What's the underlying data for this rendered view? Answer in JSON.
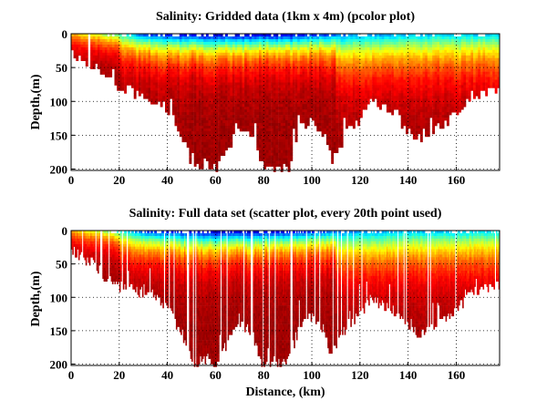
{
  "chart_data": [
    {
      "type": "heatmap",
      "title": "Salinity: Gridded data (1km x 4m) (pcolor plot)",
      "xlabel": "",
      "ylabel": "Depth,(m)",
      "xlim": [
        0,
        178
      ],
      "ylim": [
        0,
        202
      ],
      "y_reversed": true,
      "xticks": [
        "0",
        "20",
        "40",
        "60",
        "80",
        "100",
        "120",
        "140",
        "160"
      ],
      "yticks": [
        "0",
        "50",
        "100",
        "150",
        "200"
      ],
      "grid": true,
      "colormap": "jet",
      "cell_size_km": 1,
      "cell_size_m": 4,
      "bottom_depth_profile": {
        "x": [
          0,
          5,
          10,
          15,
          20,
          25,
          30,
          35,
          40,
          45,
          48,
          50,
          55,
          60,
          65,
          70,
          75,
          78,
          80,
          85,
          90,
          95,
          100,
          105,
          108,
          110,
          115,
          120,
          125,
          130,
          135,
          140,
          143,
          150,
          155,
          160,
          165,
          170,
          175,
          178
        ],
        "depth": [
          30,
          40,
          50,
          70,
          80,
          85,
          90,
          95,
          115,
          145,
          170,
          200,
          190,
          195,
          165,
          140,
          150,
          190,
          200,
          200,
          195,
          135,
          130,
          150,
          185,
          170,
          140,
          120,
          100,
          110,
          120,
          140,
          152,
          142,
          132,
          115,
          92,
          85,
          82,
          80
        ]
      },
      "surface_value_profile": {
        "x": [
          0,
          15,
          30,
          60,
          90,
          110,
          140,
          178
        ],
        "value": [
          0.72,
          0.55,
          0.2,
          0.08,
          0.12,
          0.25,
          0.32,
          0.35
        ]
      }
    },
    {
      "type": "heatmap",
      "title": "Salinity: Full data set (scatter plot, every 20th point used)",
      "xlabel": "Distance, (km)",
      "ylabel": "Depth,(m)",
      "xlim": [
        0,
        178
      ],
      "ylim": [
        0,
        202
      ],
      "y_reversed": true,
      "xticks": [
        "0",
        "20",
        "40",
        "60",
        "80",
        "100",
        "120",
        "140",
        "160"
      ],
      "yticks": [
        "0",
        "50",
        "100",
        "150",
        "200"
      ],
      "grid": true,
      "colormap": "jet",
      "sampling": "every 20th point"
    }
  ]
}
